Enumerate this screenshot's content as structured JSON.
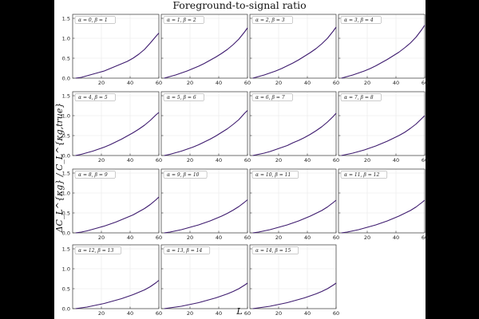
{
  "figure": {
    "background": "#000000",
    "panel_background": "#ffffff",
    "line_color": "#3d1a6e",
    "grid_color": "#e8e8e8"
  },
  "chart_data": {
    "type": "line",
    "title": "Foreground-to-signal ratio",
    "xlabel": "L",
    "ylabel": "ΔC_L^{κg} / C_L^{κg,true}",
    "xlim": [
      0,
      60
    ],
    "ylim": [
      0,
      1.6
    ],
    "xticks": [
      20,
      40,
      60
    ],
    "xtick_labels": [
      "20",
      "40",
      "60"
    ],
    "yticks": [
      0.0,
      0.5,
      1.0,
      1.5
    ],
    "ytick_labels": [
      "0.0",
      "0.5",
      "1.0",
      "1.5"
    ],
    "grid": true,
    "x": [
      2,
      6,
      10,
      14,
      18,
      22,
      26,
      30,
      34,
      38,
      42,
      46,
      50,
      54,
      58,
      60
    ],
    "panels": [
      {
        "label": "α = 0, β = 1",
        "values": [
          0.0,
          0.02,
          0.06,
          0.1,
          0.14,
          0.18,
          0.24,
          0.3,
          0.36,
          0.42,
          0.5,
          0.6,
          0.72,
          0.88,
          1.05,
          1.13
        ]
      },
      {
        "label": "α = 1, β = 2",
        "values": [
          0.0,
          0.04,
          0.08,
          0.13,
          0.18,
          0.24,
          0.3,
          0.37,
          0.45,
          0.53,
          0.62,
          0.72,
          0.84,
          0.98,
          1.16,
          1.26
        ]
      },
      {
        "label": "α = 2, β = 3",
        "values": [
          0.0,
          0.04,
          0.08,
          0.13,
          0.18,
          0.24,
          0.31,
          0.38,
          0.46,
          0.55,
          0.64,
          0.74,
          0.86,
          1.0,
          1.18,
          1.28
        ]
      },
      {
        "label": "α = 3, β = 4",
        "values": [
          0.0,
          0.04,
          0.08,
          0.13,
          0.18,
          0.24,
          0.31,
          0.39,
          0.47,
          0.56,
          0.65,
          0.76,
          0.88,
          1.03,
          1.22,
          1.33
        ]
      },
      {
        "label": "α = 4, β = 5",
        "values": [
          0.0,
          0.03,
          0.07,
          0.11,
          0.16,
          0.21,
          0.27,
          0.34,
          0.41,
          0.49,
          0.57,
          0.66,
          0.76,
          0.88,
          1.02,
          1.08
        ]
      },
      {
        "label": "α = 5, β = 6",
        "values": [
          0.0,
          0.03,
          0.07,
          0.11,
          0.16,
          0.21,
          0.27,
          0.34,
          0.41,
          0.49,
          0.58,
          0.67,
          0.78,
          0.9,
          1.06,
          1.13
        ]
      },
      {
        "label": "α = 6, β = 7",
        "values": [
          0.0,
          0.03,
          0.06,
          0.1,
          0.15,
          0.2,
          0.25,
          0.32,
          0.38,
          0.45,
          0.53,
          0.62,
          0.72,
          0.84,
          0.98,
          1.06
        ]
      },
      {
        "label": "α = 7, β = 8",
        "values": [
          0.0,
          0.03,
          0.06,
          0.1,
          0.14,
          0.19,
          0.24,
          0.3,
          0.36,
          0.43,
          0.5,
          0.58,
          0.68,
          0.79,
          0.93,
          1.0
        ]
      },
      {
        "label": "α = 8, β = 9",
        "values": [
          0.0,
          0.02,
          0.05,
          0.09,
          0.13,
          0.17,
          0.22,
          0.27,
          0.33,
          0.39,
          0.45,
          0.53,
          0.61,
          0.71,
          0.83,
          0.9
        ]
      },
      {
        "label": "α = 9, β = 10",
        "values": [
          0.0,
          0.02,
          0.05,
          0.08,
          0.12,
          0.16,
          0.2,
          0.25,
          0.3,
          0.36,
          0.42,
          0.49,
          0.57,
          0.66,
          0.77,
          0.83
        ]
      },
      {
        "label": "α = 10, β = 11",
        "values": [
          0.0,
          0.02,
          0.05,
          0.08,
          0.12,
          0.16,
          0.2,
          0.25,
          0.3,
          0.36,
          0.42,
          0.49,
          0.56,
          0.65,
          0.76,
          0.82
        ]
      },
      {
        "label": "α = 11, β = 12",
        "values": [
          0.0,
          0.02,
          0.05,
          0.08,
          0.12,
          0.16,
          0.2,
          0.25,
          0.3,
          0.36,
          0.42,
          0.49,
          0.56,
          0.65,
          0.76,
          0.82
        ]
      },
      {
        "label": "α = 12, β = 13",
        "values": [
          0.0,
          0.02,
          0.04,
          0.07,
          0.1,
          0.13,
          0.17,
          0.21,
          0.25,
          0.3,
          0.35,
          0.41,
          0.47,
          0.55,
          0.65,
          0.71
        ]
      },
      {
        "label": "α = 13, β = 14",
        "values": [
          0.0,
          0.02,
          0.04,
          0.06,
          0.09,
          0.12,
          0.15,
          0.19,
          0.23,
          0.27,
          0.32,
          0.37,
          0.43,
          0.5,
          0.59,
          0.64
        ]
      },
      {
        "label": "α = 14, β = 15",
        "values": [
          0.0,
          0.02,
          0.04,
          0.06,
          0.09,
          0.12,
          0.15,
          0.19,
          0.23,
          0.27,
          0.32,
          0.37,
          0.43,
          0.5,
          0.59,
          0.64
        ]
      }
    ]
  }
}
